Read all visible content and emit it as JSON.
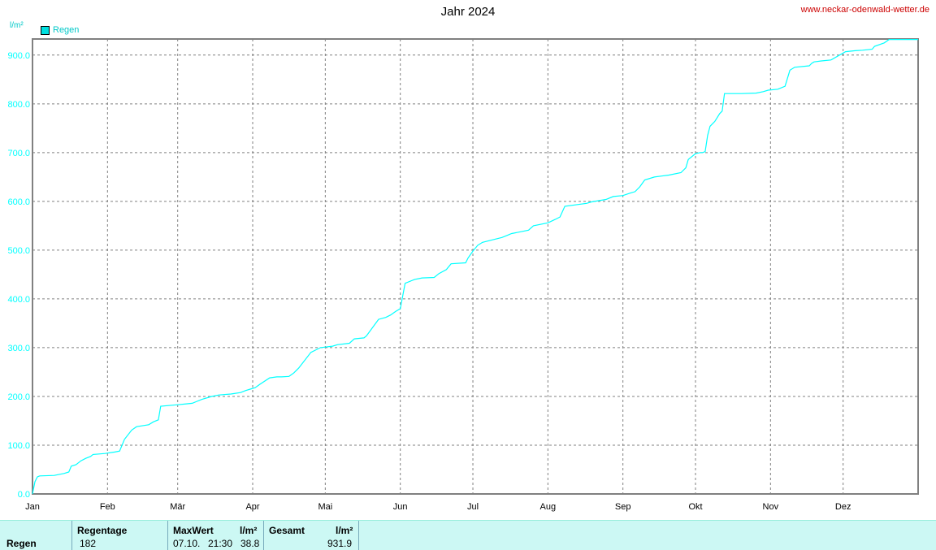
{
  "header": {
    "title": "Jahr 2024",
    "site": "www.neckar-odenwald-wetter.de",
    "unit": "l/m²",
    "legend_label": "Regen",
    "series_color": "#00ffff"
  },
  "stats": {
    "row_label": "Regen",
    "regentage_label": "Regentage",
    "regentage_value": "182",
    "maxwert_label": "MaxWert",
    "maxwert_unit": "l/m²",
    "maxwert_date": "07.10.",
    "maxwert_time": "21:30",
    "maxwert_value": "38.8",
    "gesamt_label": "Gesamt",
    "gesamt_unit": "l/m²",
    "gesamt_value": "931.9"
  },
  "chart_data": {
    "type": "line",
    "title": "Jahr 2024",
    "ylabel": "l/m²",
    "ylim": [
      0,
      933
    ],
    "xlim": [
      0,
      366
    ],
    "grid": true,
    "legend": "top-left",
    "y_ticks": [
      "0.0",
      "100.0",
      "200.0",
      "300.0",
      "400.0",
      "500.0",
      "600.0",
      "700.0",
      "800.0",
      "900.0"
    ],
    "x_ticks": [
      {
        "label": "Jan",
        "day": 0
      },
      {
        "label": "Feb",
        "day": 31
      },
      {
        "label": "Mär",
        "day": 60
      },
      {
        "label": "Apr",
        "day": 91
      },
      {
        "label": "Mai",
        "day": 121
      },
      {
        "label": "Jun",
        "day": 152
      },
      {
        "label": "Jul",
        "day": 182
      },
      {
        "label": "Aug",
        "day": 213
      },
      {
        "label": "Sep",
        "day": 244
      },
      {
        "label": "Okt",
        "day": 274
      },
      {
        "label": "Nov",
        "day": 305
      },
      {
        "label": "Dez",
        "day": 335
      }
    ],
    "series": [
      {
        "name": "Regen",
        "x": [
          0,
          1,
          2,
          3,
          9,
          13,
          15,
          16,
          18,
          20,
          22,
          24,
          25,
          30,
          34,
          36,
          38,
          41,
          43,
          48,
          50,
          52,
          53,
          60,
          64,
          66,
          68,
          70,
          74,
          77,
          82,
          86,
          88,
          90,
          92,
          94,
          98,
          101,
          103,
          106,
          108,
          110,
          115,
          119,
          124,
          126,
          131,
          133,
          137,
          138,
          143,
          146,
          148,
          150,
          152,
          154,
          158,
          161,
          166,
          168,
          171,
          173,
          179,
          180,
          182,
          184,
          186,
          190,
          194,
          196,
          198,
          205,
          207,
          213,
          216,
          218,
          220,
          229,
          231,
          237,
          240,
          244,
          247,
          249,
          251,
          253,
          257,
          260,
          263,
          268,
          270,
          271,
          274,
          276,
          277,
          278,
          279,
          280,
          282,
          284,
          285,
          286,
          293,
          299,
          302,
          304,
          308,
          311,
          313,
          315,
          321,
          322,
          323,
          326,
          330,
          336,
          340,
          343,
          347,
          348,
          352,
          354,
          361,
          366
        ],
        "y": [
          0,
          25,
          35,
          37,
          38,
          42,
          45,
          57,
          60,
          68,
          73,
          77,
          81,
          83,
          86,
          88,
          112,
          131,
          138,
          142,
          148,
          152,
          180,
          183,
          185,
          186,
          190,
          194,
          200,
          203,
          205,
          208,
          212,
          215,
          218,
          225,
          238,
          240,
          240,
          241,
          248,
          258,
          290,
          300,
          303,
          306,
          309,
          318,
          320,
          324,
          358,
          362,
          367,
          374,
          380,
          432,
          440,
          443,
          444,
          452,
          460,
          472,
          474,
          484,
          498,
          510,
          516,
          521,
          526,
          530,
          534,
          541,
          550,
          556,
          563,
          568,
          590,
          596,
          599,
          604,
          610,
          612,
          617,
          620,
          630,
          644,
          650,
          652,
          654,
          659,
          669,
          686,
          698,
          700,
          700,
          702,
          735,
          754,
          764,
          780,
          785,
          821,
          821,
          822,
          825,
          828,
          830,
          836,
          869,
          875,
          878,
          883,
          886,
          888,
          890,
          907,
          909,
          910,
          912,
          918,
          925,
          932,
          932,
          932
        ]
      }
    ]
  }
}
